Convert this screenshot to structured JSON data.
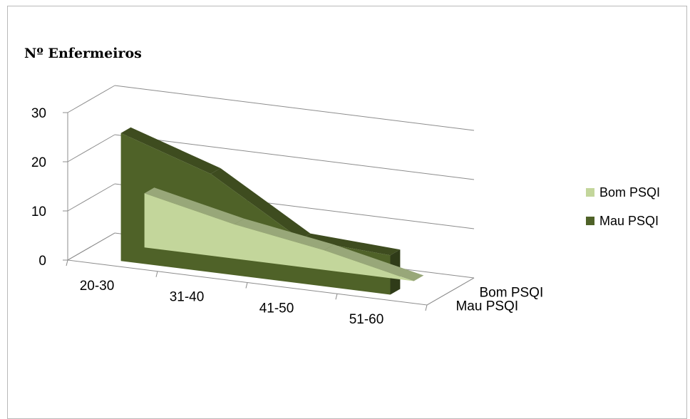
{
  "chart_data": {
    "type": "area",
    "subtype": "3d-area",
    "title": "",
    "ylabel": "Nº Enfermeiros",
    "xlabel": "",
    "categories": [
      "20-30",
      "31-40",
      "41-50",
      "51-60"
    ],
    "depth_labels": [
      "Mau PSQI",
      "Bom PSQI"
    ],
    "ylim": [
      0,
      30
    ],
    "yticks": [
      0,
      10,
      20,
      30
    ],
    "grid": true,
    "legend_position": "right",
    "series": [
      {
        "name": "Bom PSQI",
        "values": [
          11,
          7,
          4,
          0
        ],
        "color": "#c3d69b"
      },
      {
        "name": "Mau PSQI",
        "values": [
          26,
          20,
          9,
          8
        ],
        "color": "#4f6228"
      }
    ]
  }
}
